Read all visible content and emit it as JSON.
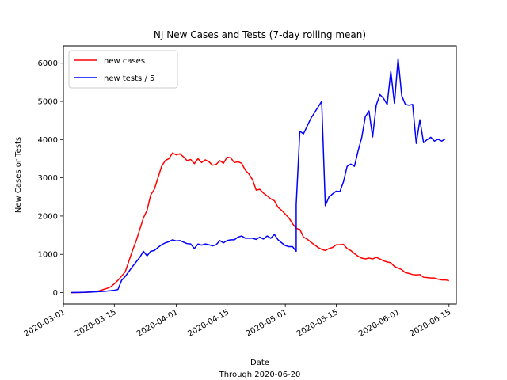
{
  "chart_data": {
    "type": "line",
    "title": "NJ New Cases and Tests (7-day rolling mean)",
    "xlabel": "Date",
    "xlabel_sub": "Through 2020-06-20",
    "ylabel": "New Cases or Tests",
    "x_type": "date",
    "xlim": [
      "2020-03-01",
      "2020-06-17"
    ],
    "ylim": [
      -300,
      6450
    ],
    "x_ticks": [
      "2020-03-01",
      "2020-03-15",
      "2020-04-01",
      "2020-04-15",
      "2020-05-01",
      "2020-05-15",
      "2020-06-01",
      "2020-06-15"
    ],
    "y_ticks": [
      0,
      1000,
      2000,
      3000,
      4000,
      5000,
      6000
    ],
    "grid": false,
    "legend": "top-left",
    "series": [
      {
        "name": "new cases",
        "color": "#ff0000",
        "points": [
          [
            "2020-03-03",
            0
          ],
          [
            "2020-03-05",
            0
          ],
          [
            "2020-03-07",
            5
          ],
          [
            "2020-03-09",
            15
          ],
          [
            "2020-03-10",
            30
          ],
          [
            "2020-03-11",
            50
          ],
          [
            "2020-03-12",
            80
          ],
          [
            "2020-03-13",
            110
          ],
          [
            "2020-03-14",
            150
          ],
          [
            "2020-03-15",
            230
          ],
          [
            "2020-03-16",
            320
          ],
          [
            "2020-03-17",
            430
          ],
          [
            "2020-03-18",
            540
          ],
          [
            "2020-03-19",
            820
          ],
          [
            "2020-03-20",
            1100
          ],
          [
            "2020-03-21",
            1350
          ],
          [
            "2020-03-22",
            1650
          ],
          [
            "2020-03-23",
            1950
          ],
          [
            "2020-03-24",
            2150
          ],
          [
            "2020-03-25",
            2550
          ],
          [
            "2020-03-26",
            2700
          ],
          [
            "2020-03-27",
            3000
          ],
          [
            "2020-03-28",
            3300
          ],
          [
            "2020-03-29",
            3450
          ],
          [
            "2020-03-30",
            3500
          ],
          [
            "2020-03-31",
            3650
          ],
          [
            "2020-04-01",
            3600
          ],
          [
            "2020-04-02",
            3630
          ],
          [
            "2020-04-03",
            3550
          ],
          [
            "2020-04-04",
            3450
          ],
          [
            "2020-04-05",
            3480
          ],
          [
            "2020-04-06",
            3370
          ],
          [
            "2020-04-07",
            3500
          ],
          [
            "2020-04-08",
            3400
          ],
          [
            "2020-04-09",
            3470
          ],
          [
            "2020-04-10",
            3420
          ],
          [
            "2020-04-11",
            3330
          ],
          [
            "2020-04-12",
            3350
          ],
          [
            "2020-04-13",
            3450
          ],
          [
            "2020-04-14",
            3380
          ],
          [
            "2020-04-15",
            3540
          ],
          [
            "2020-04-16",
            3520
          ],
          [
            "2020-04-17",
            3400
          ],
          [
            "2020-04-18",
            3420
          ],
          [
            "2020-04-19",
            3380
          ],
          [
            "2020-04-20",
            3200
          ],
          [
            "2020-04-21",
            3100
          ],
          [
            "2020-04-22",
            2950
          ],
          [
            "2020-04-23",
            2680
          ],
          [
            "2020-04-24",
            2700
          ],
          [
            "2020-04-25",
            2600
          ],
          [
            "2020-04-26",
            2530
          ],
          [
            "2020-04-27",
            2450
          ],
          [
            "2020-04-28",
            2400
          ],
          [
            "2020-04-29",
            2230
          ],
          [
            "2020-04-30",
            2150
          ],
          [
            "2020-05-01",
            2050
          ],
          [
            "2020-05-02",
            1950
          ],
          [
            "2020-05-03",
            1800
          ],
          [
            "2020-05-04",
            1680
          ],
          [
            "2020-05-05",
            1650
          ],
          [
            "2020-05-06",
            1450
          ],
          [
            "2020-05-07",
            1400
          ],
          [
            "2020-05-08",
            1320
          ],
          [
            "2020-05-09",
            1250
          ],
          [
            "2020-05-10",
            1180
          ],
          [
            "2020-05-11",
            1130
          ],
          [
            "2020-05-12",
            1100
          ],
          [
            "2020-05-13",
            1150
          ],
          [
            "2020-05-14",
            1180
          ],
          [
            "2020-05-15",
            1250
          ],
          [
            "2020-05-16",
            1250
          ],
          [
            "2020-05-17",
            1260
          ],
          [
            "2020-05-18",
            1150
          ],
          [
            "2020-05-19",
            1100
          ],
          [
            "2020-05-20",
            1020
          ],
          [
            "2020-05-21",
            950
          ],
          [
            "2020-05-22",
            900
          ],
          [
            "2020-05-23",
            880
          ],
          [
            "2020-05-24",
            900
          ],
          [
            "2020-05-25",
            880
          ],
          [
            "2020-05-26",
            920
          ],
          [
            "2020-05-27",
            880
          ],
          [
            "2020-05-28",
            830
          ],
          [
            "2020-05-29",
            800
          ],
          [
            "2020-05-30",
            780
          ],
          [
            "2020-05-31",
            680
          ],
          [
            "2020-06-01",
            640
          ],
          [
            "2020-06-02",
            600
          ],
          [
            "2020-06-03",
            520
          ],
          [
            "2020-06-04",
            500
          ],
          [
            "2020-06-05",
            470
          ],
          [
            "2020-06-06",
            460
          ],
          [
            "2020-06-07",
            470
          ],
          [
            "2020-06-08",
            400
          ],
          [
            "2020-06-09",
            390
          ],
          [
            "2020-06-10",
            380
          ],
          [
            "2020-06-11",
            380
          ],
          [
            "2020-06-12",
            350
          ],
          [
            "2020-06-13",
            330
          ],
          [
            "2020-06-14",
            330
          ],
          [
            "2020-06-15",
            310
          ]
        ]
      },
      {
        "name": "new tests / 5",
        "color": "#0000ff",
        "points": [
          [
            "2020-03-03",
            0
          ],
          [
            "2020-03-06",
            5
          ],
          [
            "2020-03-09",
            15
          ],
          [
            "2020-03-11",
            25
          ],
          [
            "2020-03-13",
            40
          ],
          [
            "2020-03-15",
            60
          ],
          [
            "2020-03-16",
            80
          ],
          [
            "2020-03-17",
            320
          ],
          [
            "2020-03-18",
            420
          ],
          [
            "2020-03-19",
            550
          ],
          [
            "2020-03-20",
            680
          ],
          [
            "2020-03-21",
            800
          ],
          [
            "2020-03-22",
            920
          ],
          [
            "2020-03-23",
            1080
          ],
          [
            "2020-03-24",
            960
          ],
          [
            "2020-03-25",
            1080
          ],
          [
            "2020-03-26",
            1100
          ],
          [
            "2020-03-27",
            1180
          ],
          [
            "2020-03-28",
            1250
          ],
          [
            "2020-03-29",
            1300
          ],
          [
            "2020-03-30",
            1330
          ],
          [
            "2020-03-31",
            1380
          ],
          [
            "2020-04-01",
            1350
          ],
          [
            "2020-04-02",
            1360
          ],
          [
            "2020-04-03",
            1320
          ],
          [
            "2020-04-04",
            1280
          ],
          [
            "2020-04-05",
            1270
          ],
          [
            "2020-04-06",
            1150
          ],
          [
            "2020-04-07",
            1270
          ],
          [
            "2020-04-08",
            1240
          ],
          [
            "2020-04-09",
            1270
          ],
          [
            "2020-04-10",
            1250
          ],
          [
            "2020-04-11",
            1220
          ],
          [
            "2020-04-12",
            1250
          ],
          [
            "2020-04-13",
            1360
          ],
          [
            "2020-04-14",
            1300
          ],
          [
            "2020-04-15",
            1360
          ],
          [
            "2020-04-16",
            1380
          ],
          [
            "2020-04-17",
            1380
          ],
          [
            "2020-04-18",
            1450
          ],
          [
            "2020-04-19",
            1480
          ],
          [
            "2020-04-20",
            1420
          ],
          [
            "2020-04-21",
            1420
          ],
          [
            "2020-04-22",
            1420
          ],
          [
            "2020-04-23",
            1390
          ],
          [
            "2020-04-24",
            1450
          ],
          [
            "2020-04-25",
            1400
          ],
          [
            "2020-04-26",
            1480
          ],
          [
            "2020-04-27",
            1420
          ],
          [
            "2020-04-28",
            1520
          ],
          [
            "2020-04-29",
            1380
          ],
          [
            "2020-04-30",
            1300
          ],
          [
            "2020-05-01",
            1230
          ],
          [
            "2020-05-02",
            1200
          ],
          [
            "2020-05-03",
            1200
          ],
          [
            "2020-05-04",
            1080
          ],
          [
            "2020-05-04",
            2300
          ],
          [
            "2020-05-05",
            4220
          ],
          [
            "2020-05-06",
            4150
          ],
          [
            "2020-05-07",
            4350
          ],
          [
            "2020-05-08",
            4550
          ],
          [
            "2020-05-09",
            4700
          ],
          [
            "2020-05-10",
            4850
          ],
          [
            "2020-05-11",
            5000
          ],
          [
            "2020-05-12",
            2270
          ],
          [
            "2020-05-13",
            2500
          ],
          [
            "2020-05-14",
            2580
          ],
          [
            "2020-05-15",
            2650
          ],
          [
            "2020-05-16",
            2640
          ],
          [
            "2020-05-17",
            2900
          ],
          [
            "2020-05-18",
            3300
          ],
          [
            "2020-05-19",
            3360
          ],
          [
            "2020-05-20",
            3300
          ],
          [
            "2020-05-21",
            3700
          ],
          [
            "2020-05-22",
            4050
          ],
          [
            "2020-05-23",
            4600
          ],
          [
            "2020-05-24",
            4750
          ],
          [
            "2020-05-25",
            4070
          ],
          [
            "2020-05-26",
            4900
          ],
          [
            "2020-05-27",
            5180
          ],
          [
            "2020-05-28",
            5080
          ],
          [
            "2020-05-29",
            4920
          ],
          [
            "2020-05-30",
            5780
          ],
          [
            "2020-05-31",
            4950
          ],
          [
            "2020-06-01",
            6120
          ],
          [
            "2020-06-02",
            5150
          ],
          [
            "2020-06-03",
            4920
          ],
          [
            "2020-06-04",
            4900
          ],
          [
            "2020-06-05",
            4920
          ],
          [
            "2020-06-06",
            3900
          ],
          [
            "2020-06-07",
            4520
          ],
          [
            "2020-06-08",
            3920
          ],
          [
            "2020-06-09",
            4000
          ],
          [
            "2020-06-10",
            4060
          ],
          [
            "2020-06-11",
            3960
          ],
          [
            "2020-06-12",
            4010
          ],
          [
            "2020-06-13",
            3960
          ],
          [
            "2020-06-14",
            4020
          ]
        ]
      }
    ]
  }
}
